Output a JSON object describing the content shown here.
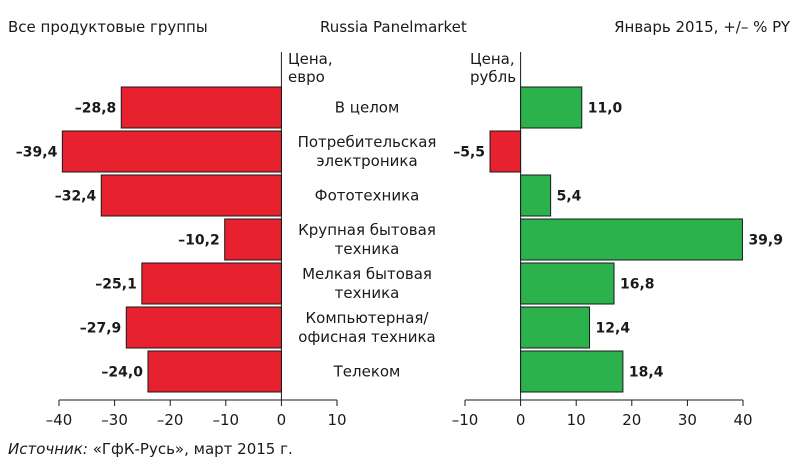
{
  "header": {
    "left": "Все продуктовые группы",
    "center": "Russia Panelmarket",
    "right": "Январь 2015, +/– % PY"
  },
  "source": {
    "label": "Источник:",
    "text": "«ГфК-Русь», март 2015 г."
  },
  "chart_data": [
    {
      "type": "bar",
      "orientation": "horizontal",
      "title": "Цена, евро",
      "categories": [
        [
          "В целом"
        ],
        [
          "Потребительская",
          "электроника"
        ],
        [
          "Фототехника"
        ],
        [
          "Крупная бытовая",
          "техника"
        ],
        [
          "Мелкая бытовая",
          "техника"
        ],
        [
          "Компьютерная/",
          "офисная техника"
        ],
        [
          "Телеком"
        ]
      ],
      "values": [
        -28.8,
        -39.4,
        -32.4,
        -10.2,
        -25.1,
        -27.9,
        -24.0
      ],
      "value_labels": [
        "–28,8",
        "–39,4",
        "–32,4",
        "–10,2",
        "–25,1",
        "–27,9",
        "–24,0"
      ],
      "xlim": [
        -40,
        10
      ],
      "ticks": [
        -40,
        -30,
        -20,
        -10,
        0,
        10
      ],
      "tick_labels": [
        "–40",
        "–30",
        "–20",
        "–10",
        "0",
        "10"
      ],
      "color": "#e8212e"
    },
    {
      "type": "bar",
      "orientation": "horizontal",
      "title": "Цена, рубль",
      "values": [
        11.0,
        -5.5,
        5.4,
        39.9,
        16.8,
        12.4,
        18.4
      ],
      "value_labels": [
        "11,0",
        "–5,5",
        "5,4",
        "39,9",
        "16,8",
        "12,4",
        "18,4"
      ],
      "xlim": [
        -10,
        40
      ],
      "ticks": [
        -10,
        0,
        10,
        20,
        30,
        40
      ],
      "tick_labels": [
        "–10",
        "0",
        "10",
        "20",
        "30",
        "40"
      ],
      "color": "#2bb24c",
      "negative_color": "#e8212e"
    }
  ]
}
